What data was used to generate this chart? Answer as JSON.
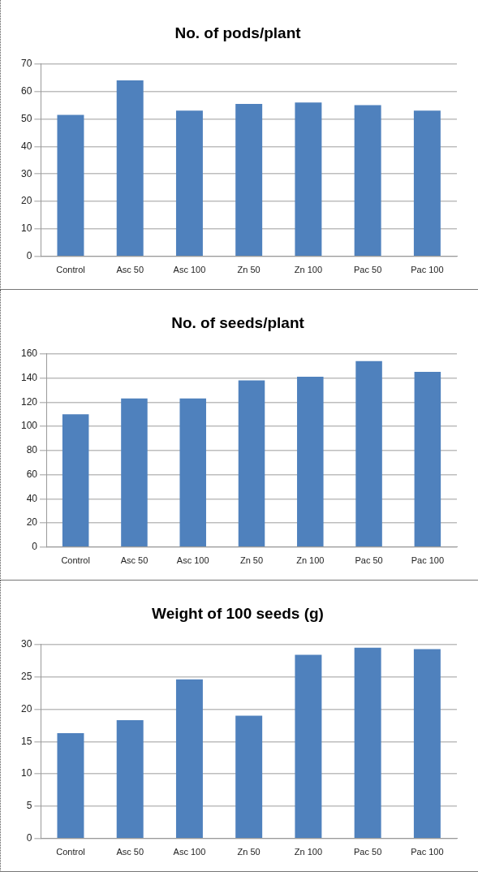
{
  "chart_data": [
    {
      "type": "bar",
      "title": "No. of pods/plant",
      "categories": [
        "Control",
        "Asc 50",
        "Asc 100",
        "Zn 50",
        "Zn 100",
        "Pac 50",
        "Pac 100"
      ],
      "values": [
        51.5,
        64,
        53,
        55.5,
        56,
        55,
        53
      ],
      "color": "#4f81bd",
      "ylim": [
        0,
        70
      ],
      "yticks": [
        0,
        10,
        20,
        30,
        40,
        50,
        60,
        70
      ],
      "grid": "y"
    },
    {
      "type": "bar",
      "title": "No. of seeds/plant",
      "categories": [
        "Control",
        "Asc 50",
        "Asc 100",
        "Zn 50",
        "Zn 100",
        "Pac 50",
        "Pac 100"
      ],
      "values": [
        110,
        123,
        123,
        138,
        141,
        154,
        145
      ],
      "color": "#4f81bd",
      "ylim": [
        0,
        160
      ],
      "yticks": [
        0,
        20,
        40,
        60,
        80,
        100,
        120,
        140,
        160
      ],
      "grid": "y"
    },
    {
      "type": "bar",
      "title": "Weight of 100 seeds (g)",
      "categories": [
        "Control",
        "Asc 50",
        "Asc 100",
        "Zn 50",
        "Zn 100",
        "Pac 50",
        "Pac 100"
      ],
      "values": [
        16.3,
        18.3,
        24.6,
        19,
        28.4,
        29.5,
        29.3
      ],
      "color": "#4f81bd",
      "ylim": [
        0,
        30
      ],
      "yticks": [
        0,
        5,
        10,
        15,
        20,
        25,
        30
      ],
      "grid": "y"
    }
  ]
}
